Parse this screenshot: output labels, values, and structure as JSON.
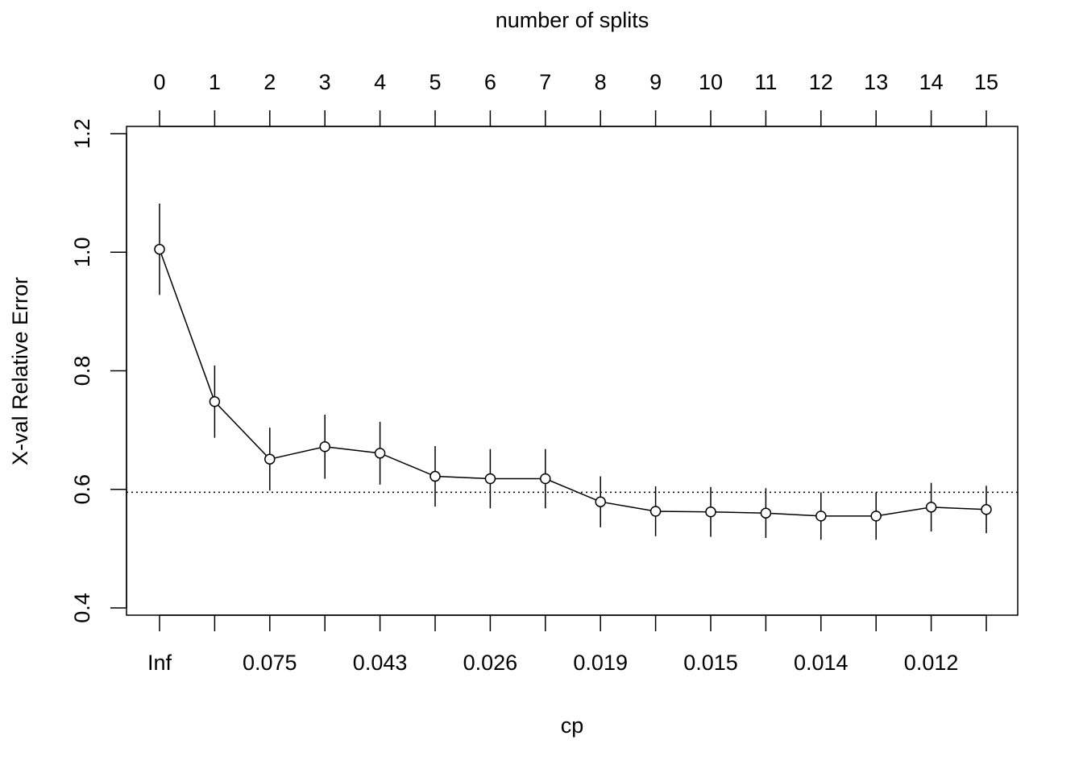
{
  "chart_data": {
    "type": "line",
    "top_axis_title": "number of splits",
    "xlabel": "cp",
    "ylabel": "X-val Relative Error",
    "splits": [
      0,
      1,
      2,
      3,
      4,
      5,
      6,
      7,
      8,
      9,
      10,
      11,
      12,
      13,
      14,
      15
    ],
    "cp_tick_labels": [
      "Inf",
      "",
      "0.075",
      "",
      "0.043",
      "",
      "0.026",
      "",
      "0.019",
      "",
      "0.015",
      "",
      "0.014",
      "",
      "0.012",
      ""
    ],
    "xerror": [
      1.005,
      0.748,
      0.651,
      0.672,
      0.661,
      0.622,
      0.618,
      0.618,
      0.579,
      0.563,
      0.562,
      0.56,
      0.555,
      0.555,
      0.57,
      0.566
    ],
    "xstd": [
      0.077,
      0.061,
      0.053,
      0.054,
      0.053,
      0.051,
      0.05,
      0.05,
      0.043,
      0.042,
      0.042,
      0.042,
      0.04,
      0.04,
      0.041,
      0.04
    ],
    "reference_line": 0.595,
    "ylim": [
      0.4,
      1.2
    ],
    "yticks": [
      0.4,
      0.6,
      0.8,
      1.0,
      1.2
    ],
    "ytick_labels": [
      "0.4",
      "0.6",
      "0.8",
      "1.0",
      "1.2"
    ],
    "grid": false,
    "legend": "none"
  }
}
